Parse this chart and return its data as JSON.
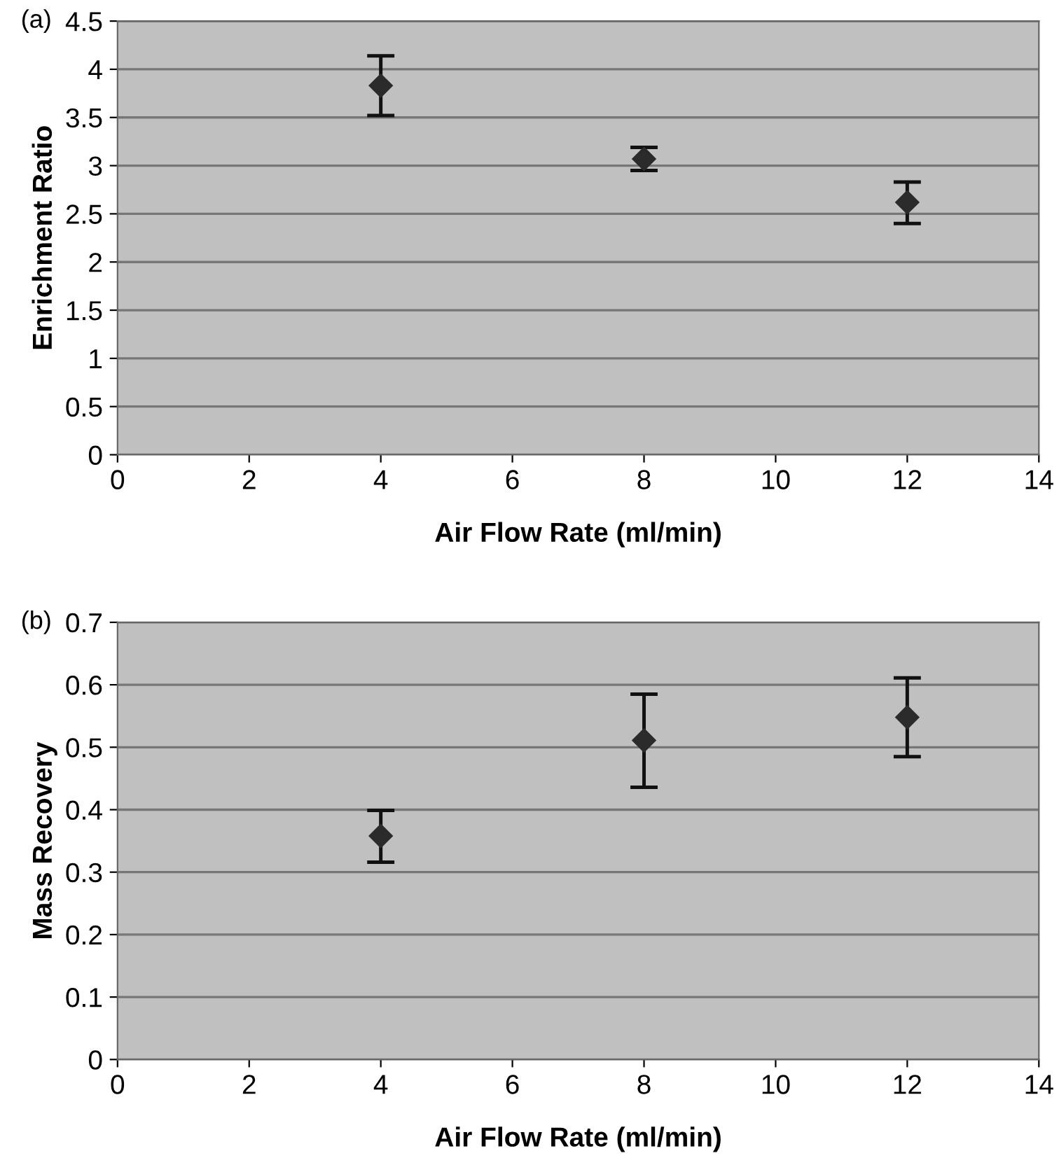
{
  "chart_data": [
    {
      "type": "scatter",
      "annotations": [
        "(a)"
      ],
      "xlabel": "Air Flow Rate (ml/min)",
      "ylabel": "Enrichment Ratio",
      "x": [
        4,
        8,
        12
      ],
      "series": [
        {
          "color": "#2b2b2b",
          "values": [
            3.83,
            3.07,
            2.62
          ],
          "errors": [
            [
              3.52,
              4.14
            ],
            [
              2.95,
              3.19
            ],
            [
              2.4,
              2.83
            ]
          ]
        }
      ],
      "marker": "diamond",
      "xlim": [
        0,
        14
      ],
      "xticks": [
        0,
        2,
        4,
        6,
        8,
        10,
        12,
        14
      ],
      "ylim": [
        0,
        4.5
      ],
      "yticks": [
        0,
        0.5,
        1,
        1.5,
        2,
        2.5,
        3,
        3.5,
        4,
        4.5
      ],
      "grid": "y"
    },
    {
      "type": "scatter",
      "annotations": [
        "(b)"
      ],
      "xlabel": "Air Flow Rate (ml/min)",
      "ylabel": "Mass Recovery",
      "x": [
        4,
        8,
        12
      ],
      "series": [
        {
          "color": "#2b2b2b",
          "values": [
            0.358,
            0.511,
            0.548
          ],
          "errors": [
            [
              0.316,
              0.399
            ],
            [
              0.436,
              0.585
            ],
            [
              0.485,
              0.611
            ]
          ]
        }
      ],
      "marker": "diamond",
      "xlim": [
        0,
        14
      ],
      "xticks": [
        0,
        2,
        4,
        6,
        8,
        10,
        12,
        14
      ],
      "ylim": [
        0,
        0.7
      ],
      "yticks": [
        0,
        0.1,
        0.2,
        0.3,
        0.4,
        0.5,
        0.6,
        0.7
      ],
      "grid": "y"
    }
  ]
}
